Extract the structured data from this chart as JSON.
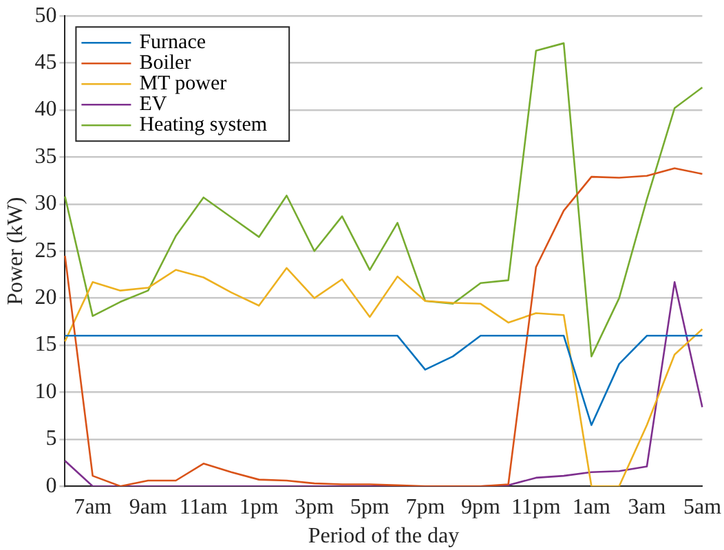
{
  "chart_data": {
    "type": "line",
    "xlabel": "Period of the day",
    "ylabel": "Power (kW)",
    "categories": [
      null,
      "7am",
      null,
      "9am",
      null,
      "11am",
      null,
      "1pm",
      null,
      "3pm",
      null,
      "5pm",
      null,
      "7pm",
      null,
      "9pm",
      null,
      "11pm",
      null,
      "1am",
      null,
      "3am",
      null,
      "5am"
    ],
    "ylim": [
      0,
      50
    ],
    "yticks": [
      0,
      5,
      10,
      15,
      20,
      25,
      30,
      35,
      40,
      45,
      50
    ],
    "grid": "y",
    "legend": "top left",
    "marker": "none",
    "line_style": "solid",
    "series": [
      {
        "name": "Furnace",
        "color": "#0072bd",
        "values": [
          16,
          16,
          16,
          16,
          16,
          16,
          16,
          16,
          16,
          16,
          16,
          16,
          16,
          12.4,
          13.8,
          16,
          16,
          16,
          16,
          6.5,
          13,
          16,
          16,
          16
        ]
      },
      {
        "name": "Boiler",
        "color": "#d95319",
        "values": [
          24.5,
          1.1,
          0,
          0.6,
          0.6,
          2.4,
          1.5,
          0.7,
          0.6,
          0.3,
          0.2,
          0.2,
          0.1,
          0,
          0,
          0,
          0.2,
          23.3,
          29.3,
          32.9,
          32.8,
          33,
          33.8,
          33.2
        ]
      },
      {
        "name": "MT power",
        "color": "#edb120",
        "values": [
          15.4,
          21.7,
          20.8,
          21.1,
          23,
          22.2,
          20.6,
          19.2,
          23.2,
          20,
          22,
          18,
          22.3,
          19.7,
          19.5,
          19.4,
          17.4,
          18.4,
          18.2,
          0,
          0,
          6.5,
          14,
          16.7
        ]
      },
      {
        "name": "EV",
        "color": "#7e2f8e",
        "values": [
          2.7,
          0,
          0,
          0,
          0,
          0,
          0,
          0,
          0,
          0,
          0,
          0,
          0,
          0,
          0,
          0,
          0.1,
          0.9,
          1.1,
          1.5,
          1.6,
          2.1,
          21.7,
          8.4
        ]
      },
      {
        "name": "Heating system",
        "color": "#77ac30",
        "values": [
          30.8,
          18.1,
          19.6,
          20.8,
          26.6,
          30.7,
          28.6,
          26.5,
          30.9,
          25,
          28.7,
          23,
          28,
          19.7,
          19.4,
          21.6,
          21.9,
          46.3,
          47.1,
          13.8,
          20,
          30.5,
          40.2,
          42.4
        ]
      }
    ]
  }
}
